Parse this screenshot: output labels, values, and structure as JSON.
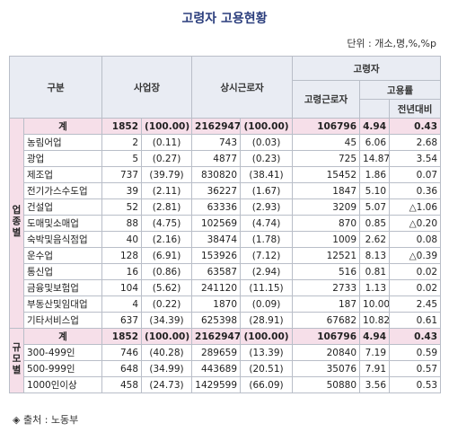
{
  "title": "고령자 고용현황",
  "unit": "단위 : 개소,명,%,%p",
  "header": {
    "category": "구분",
    "establishments": "사업장",
    "regular_workers": "상시근로자",
    "elderly": "고령자",
    "elderly_workers": "고령근로자",
    "employment_rate": "고용률",
    "yoy": "전년대비"
  },
  "groups": [
    {
      "label": "업종별",
      "rows": [
        [
          "계",
          "1852",
          "(100.00)",
          "2162947",
          "(100.00)",
          "106796",
          "4.94",
          "0.43"
        ],
        [
          "농림어업",
          "2",
          "(0.11)",
          "743",
          "(0.03)",
          "45",
          "6.06",
          "2.68"
        ],
        [
          "광업",
          "5",
          "(0.27)",
          "4877",
          "(0.23)",
          "725",
          "14.87",
          "3.54"
        ],
        [
          "제조업",
          "737",
          "(39.79)",
          "830820",
          "(38.41)",
          "15452",
          "1.86",
          "0.07"
        ],
        [
          "전기가스수도업",
          "39",
          "(2.11)",
          "36227",
          "(1.67)",
          "1847",
          "5.10",
          "0.36"
        ],
        [
          "건설업",
          "52",
          "(2.81)",
          "63336",
          "(2.93)",
          "3209",
          "5.07",
          "△1.06"
        ],
        [
          "도매및소매업",
          "88",
          "(4.75)",
          "102569",
          "(4.74)",
          "870",
          "0.85",
          "△0.20"
        ],
        [
          "숙박및음식점업",
          "40",
          "(2.16)",
          "38474",
          "(1.78)",
          "1009",
          "2.62",
          "0.08"
        ],
        [
          "운수업",
          "128",
          "(6.91)",
          "153926",
          "(7.12)",
          "12521",
          "8.13",
          "△0.39"
        ],
        [
          "통신업",
          "16",
          "(0.86)",
          "63587",
          "(2.94)",
          "516",
          "0.81",
          "0.02"
        ],
        [
          "금융및보험업",
          "104",
          "(5.62)",
          "241120",
          "(11.15)",
          "2733",
          "1.13",
          "0.02"
        ],
        [
          "부동산및임대업",
          "4",
          "(0.22)",
          "1870",
          "(0.09)",
          "187",
          "10.00",
          "2.45"
        ],
        [
          "기타서비스업",
          "637",
          "(34.39)",
          "625398",
          "(28.91)",
          "67682",
          "10.82",
          "0.61"
        ]
      ]
    },
    {
      "label": "규모별",
      "rows": [
        [
          "계",
          "1852",
          "(100.00)",
          "2162947",
          "(100.00)",
          "106796",
          "4.94",
          "0.43"
        ],
        [
          "300-499인",
          "746",
          "(40.28)",
          "289659",
          "(13.39)",
          "20840",
          "7.19",
          "0.59"
        ],
        [
          "500-999인",
          "648",
          "(34.99)",
          "443689",
          "(20.51)",
          "35076",
          "7.91",
          "0.57"
        ],
        [
          "1000인이상",
          "458",
          "(24.73)",
          "1429599",
          "(66.09)",
          "50880",
          "3.56",
          "0.53"
        ]
      ]
    }
  ],
  "source": "◈ 출처 : 노동부"
}
